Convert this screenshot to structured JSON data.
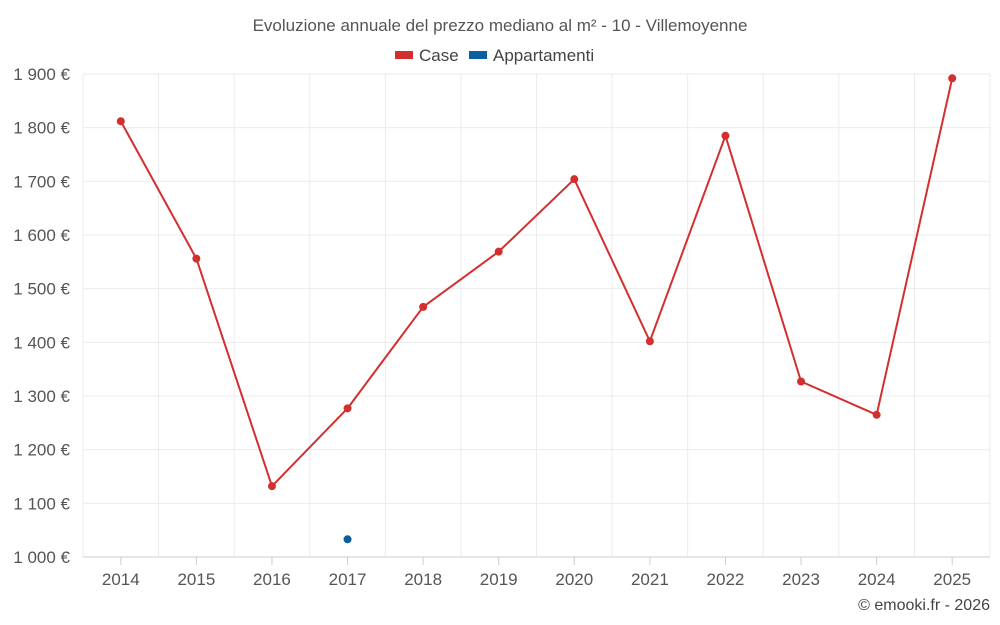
{
  "chart_data": {
    "type": "line",
    "title": "Evoluzione annuale del prezzo mediano al m² - 10 - Villemoyenne",
    "categories": [
      "2014",
      "2015",
      "2016",
      "2017",
      "2018",
      "2019",
      "2020",
      "2021",
      "2022",
      "2023",
      "2024",
      "2025"
    ],
    "series": [
      {
        "name": "Case",
        "color": "#d32f2f",
        "values": [
          1812,
          1556,
          1132,
          1277,
          1466,
          1569,
          1704,
          1402,
          1785,
          1327,
          1265,
          1892
        ]
      },
      {
        "name": "Appartamenti",
        "color": "#0a5f9e",
        "values": [
          null,
          null,
          null,
          1033,
          null,
          null,
          null,
          null,
          null,
          null,
          null,
          null
        ]
      }
    ],
    "ylim": [
      1000,
      1900
    ],
    "yticks": [
      1000,
      1100,
      1200,
      1300,
      1400,
      1500,
      1600,
      1700,
      1800,
      1900
    ],
    "ytick_labels": [
      "1 000 €",
      "1 100 €",
      "1 200 €",
      "1 300 €",
      "1 400 €",
      "1 500 €",
      "1 600 €",
      "1 700 €",
      "1 800 €",
      "1 900 €"
    ],
    "xlabel": "",
    "ylabel": "",
    "grid": true,
    "legend_position": "top-center"
  },
  "credit": "© emooki.fr - 2026"
}
